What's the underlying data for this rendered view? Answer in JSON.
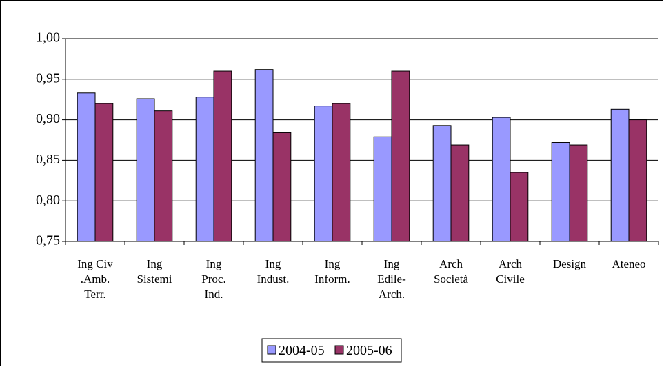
{
  "chart_data": {
    "type": "bar",
    "categories": [
      "Ing Civ\n.Amb.\nTerr.",
      "Ing\nSistemi",
      "Ing\nProc.\nInd.",
      "Ing\nIndust.",
      "Ing\nInform.",
      "Ing\nEdile-\nArch.",
      "Arch\nSocietà",
      "Arch\nCivile",
      "Design",
      "Ateneo"
    ],
    "series": [
      {
        "name": "2004-05",
        "color": "#9999ff",
        "values": [
          0.933,
          0.926,
          0.928,
          0.962,
          0.917,
          0.879,
          0.893,
          0.903,
          0.872,
          0.913
        ]
      },
      {
        "name": "2005-06",
        "color": "#993366",
        "values": [
          0.92,
          0.911,
          0.96,
          0.884,
          0.92,
          0.96,
          0.869,
          0.835,
          0.869,
          0.9
        ]
      }
    ],
    "ylim": [
      0.75,
      1.0
    ],
    "yticks": [
      {
        "value": 0.75,
        "label": "0,75"
      },
      {
        "value": 0.8,
        "label": "0,80"
      },
      {
        "value": 0.85,
        "label": "0,85"
      },
      {
        "value": 0.9,
        "label": "0,90"
      },
      {
        "value": 0.95,
        "label": "0,95"
      },
      {
        "value": 1.0,
        "label": "1,00"
      }
    ],
    "grid": true,
    "legend": "bottom"
  }
}
